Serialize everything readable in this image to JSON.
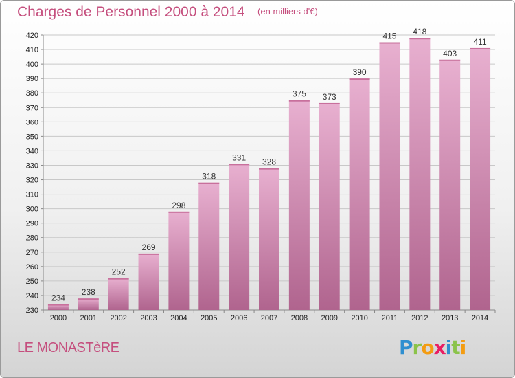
{
  "title": "Charges de Personnel 2000 à 2014",
  "subtitle": "(en milliers d'€)",
  "location": "LE MONASTèRE",
  "brand": {
    "letters": [
      "P",
      "r",
      "o",
      "x",
      "i",
      "t",
      "i"
    ],
    "colors": [
      "#2f8fd0",
      "#8bc34a",
      "#f39c12",
      "#e91e63",
      "#2f8fd0",
      "#8bc34a",
      "#f39c12"
    ]
  },
  "colors": {
    "bar_top": "#e8b0d0",
    "bar_bottom": "#b0648e",
    "accent": "#c54f7e",
    "grid": "#c8c8c8"
  },
  "chart_data": {
    "type": "bar",
    "title": "Charges de Personnel 2000 à 2014",
    "subtitle": "(en milliers d'€)",
    "categories": [
      "2000",
      "2001",
      "2002",
      "2003",
      "2004",
      "2005",
      "2006",
      "2007",
      "2008",
      "2009",
      "2010",
      "2011",
      "2012",
      "2013",
      "2014"
    ],
    "values": [
      234,
      238,
      252,
      269,
      298,
      318,
      331,
      328,
      375,
      373,
      390,
      415,
      418,
      403,
      411
    ],
    "ylim": [
      230,
      420
    ],
    "ytick_step": 10,
    "grid": true,
    "legend": "none"
  }
}
